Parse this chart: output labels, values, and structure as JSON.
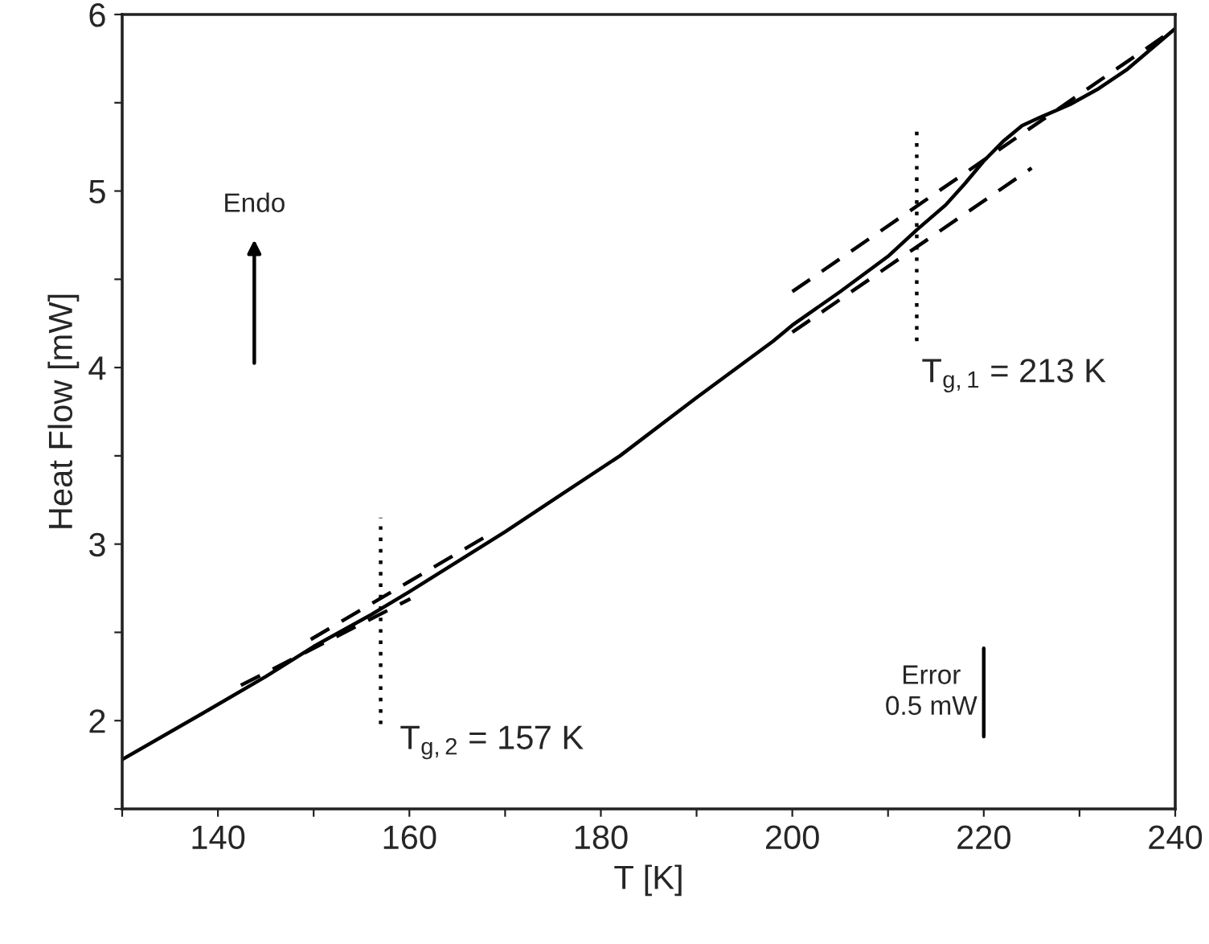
{
  "chart_data": {
    "type": "line",
    "xlabel": "T [K]",
    "ylabel": "Heat Flow [mW]",
    "xlim": [
      130,
      240
    ],
    "ylim": [
      1.5,
      6
    ],
    "xticks": [
      {
        "value": 130,
        "label": null
      },
      140,
      {
        "value": 150,
        "label": null
      },
      160,
      {
        "value": 170,
        "label": null
      },
      180,
      {
        "value": 190,
        "label": null
      },
      200,
      {
        "value": 210,
        "label": null
      },
      220,
      {
        "value": 230,
        "label": null
      },
      240
    ],
    "yticks": [
      {
        "value": 1.5,
        "label": null
      },
      2,
      {
        "value": 2.5,
        "label": null
      },
      3,
      {
        "value": 3.5,
        "label": null
      },
      4,
      {
        "value": 4.5,
        "label": null
      },
      5,
      {
        "value": 5.5,
        "label": null
      },
      6
    ],
    "grid": false,
    "legend": false,
    "marker": "none",
    "series": [
      {
        "color": "#000000",
        "line_style": "solid",
        "x": [
          130,
          139,
          145,
          150,
          156,
          160,
          165,
          170,
          175,
          182,
          190,
          198,
          200,
          205,
          210,
          213,
          216,
          218,
          220,
          222,
          224,
          226,
          229,
          232,
          235,
          240
        ],
        "values": [
          1.78,
          2.06,
          2.25,
          2.42,
          2.6,
          2.73,
          2.9,
          3.07,
          3.25,
          3.5,
          3.83,
          4.15,
          4.24,
          4.43,
          4.63,
          4.78,
          4.92,
          5.04,
          5.17,
          5.28,
          5.37,
          5.42,
          5.49,
          5.58,
          5.69,
          5.92
        ]
      },
      {
        "color": "#000000",
        "line_style": "dashed",
        "x": [
          149.7,
          168.2
        ],
        "values": [
          2.46,
          3.05
        ]
      },
      {
        "color": "#000000",
        "line_style": "dashed",
        "x": [
          142.4,
          160.1
        ],
        "values": [
          2.2,
          2.69
        ]
      },
      {
        "color": "#000000",
        "line_style": "dashed",
        "x": [
          200,
          240
        ],
        "values": [
          4.43,
          5.92
        ]
      },
      {
        "color": "#000000",
        "line_style": "dashed",
        "x": [
          200,
          225
        ],
        "values": [
          4.2,
          5.13
        ]
      },
      {
        "color": "#000000",
        "line_style": "dotted",
        "x": [
          157,
          157
        ],
        "values": [
          1.98,
          3.15
        ]
      },
      {
        "color": "#000000",
        "line_style": "dotted",
        "x": [
          213,
          213
        ],
        "values": [
          4.15,
          5.35
        ]
      },
      {
        "color": "#000000",
        "line_style": "solid",
        "x": [
          220,
          220
        ],
        "values": [
          1.91,
          2.41
        ]
      }
    ],
    "annotations": [
      "T$_{g,2}$ = 157 K",
      "T$_{g,1}$ = 213 K",
      "Error\n0.5 mW",
      "Endo"
    ]
  }
}
